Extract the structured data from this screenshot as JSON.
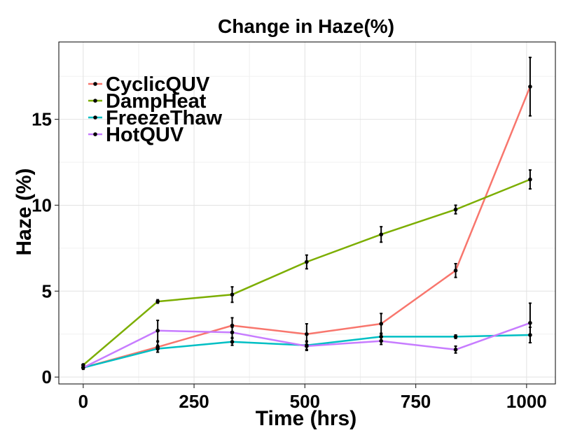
{
  "chart_data": {
    "type": "line",
    "title": "Change in Haze(%)",
    "xlabel": "Time (hrs)",
    "ylabel": "Haze (%)",
    "xlim": [
      -55,
      1065
    ],
    "ylim": [
      -0.4,
      19.5
    ],
    "xticks": [
      0,
      250,
      500,
      750,
      1000
    ],
    "yticks": [
      0,
      5,
      10,
      15
    ],
    "grid": true,
    "legend_position": "top-left",
    "series": [
      {
        "name": "CyclicQUV",
        "color": "#F8766D",
        "x": [
          0,
          168,
          336,
          504,
          672,
          840,
          1008
        ],
        "y": [
          0.55,
          1.75,
          3.0,
          2.5,
          3.1,
          6.2,
          16.9
        ],
        "err": [
          0.1,
          0.3,
          0.45,
          0.6,
          0.6,
          0.4,
          1.7
        ]
      },
      {
        "name": "DampHeat",
        "color": "#7CAE00",
        "x": [
          0,
          168,
          336,
          504,
          672,
          840,
          1008
        ],
        "y": [
          0.7,
          4.4,
          4.8,
          6.7,
          8.3,
          9.75,
          11.5
        ],
        "err": [
          0.05,
          0.1,
          0.45,
          0.4,
          0.45,
          0.25,
          0.55
        ]
      },
      {
        "name": "FreezeThaw",
        "color": "#00BFC4",
        "x": [
          0,
          168,
          336,
          504,
          672,
          840,
          1008
        ],
        "y": [
          0.55,
          1.65,
          2.05,
          1.85,
          2.35,
          2.35,
          2.45
        ],
        "err": [
          0.05,
          0.2,
          0.2,
          0.25,
          0.2,
          0.1,
          0.45
        ]
      },
      {
        "name": "HotQUV",
        "color": "#C77CFF",
        "x": [
          0,
          168,
          336,
          504,
          672,
          840,
          1008
        ],
        "y": [
          0.55,
          2.7,
          2.6,
          1.8,
          2.1,
          1.6,
          3.15
        ],
        "err": [
          0.05,
          0.6,
          0.3,
          0.25,
          0.2,
          0.2,
          1.15
        ]
      }
    ]
  }
}
